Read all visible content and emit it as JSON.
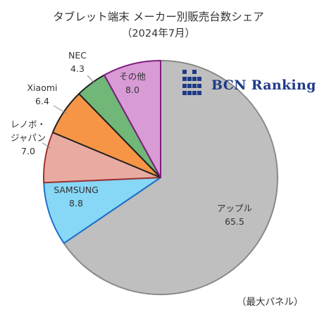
{
  "title": "タブレット端末 メーカー別販売台数シェア",
  "subtitle": "（2024年7月）",
  "footnote": "（最大パネル）",
  "brand": {
    "name": "BCN Ranking",
    "logo_icon": "bcn-grid-logo-icon",
    "color": "#1f3b86"
  },
  "chart_data": {
    "type": "pie",
    "title": "タブレット端末 メーカー別販売台数シェア",
    "subtitle": "（2024年7月）",
    "slices": [
      {
        "name": "アップル",
        "value": 65.5,
        "color": "#bfbfbf",
        "label_line1": "アップル",
        "label_line2": "65.5"
      },
      {
        "name": "SAMSUNG",
        "value": 8.8,
        "color": "#87d7f6",
        "label_line1": "SAMSUNG",
        "label_line2": "8.8"
      },
      {
        "name": "レノボ・ジャパン",
        "value": 7.0,
        "color": "#e8aba1",
        "label_line1": "レノボ・",
        "label_line1b": "ジャパン",
        "label_line2": "7.0"
      },
      {
        "name": "Xiaomi",
        "value": 6.4,
        "color": "#f79546",
        "label_line1": "Xiaomi",
        "label_line2": "6.4"
      },
      {
        "name": "NEC",
        "value": 4.3,
        "color": "#71b778",
        "label_line1": "NEC",
        "label_line2": "4.3"
      },
      {
        "name": "その他",
        "value": 8.0,
        "color": "#d99bd6",
        "label_line1": "その他",
        "label_line2": "8.0"
      }
    ],
    "border_colors": {
      "アップル": "#888888",
      "SAMSUNG": "#1a6fc7",
      "レノボ・ジャパン": "#a03030",
      "Xiaomi": "#222222",
      "NEC": "#222222",
      "その他": "#7d1f7d"
    },
    "start": "12 o'clock",
    "direction": "clockwise"
  }
}
